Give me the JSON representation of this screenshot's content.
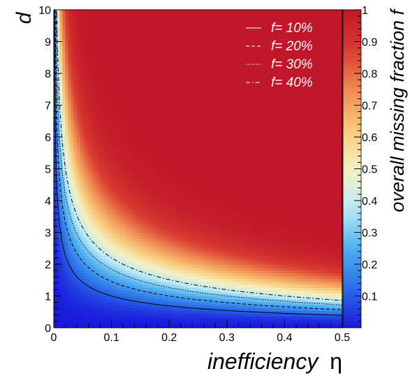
{
  "chart_data": {
    "type": "heatmap",
    "function": "f = 1 - (1 - eta)^(d^2)",
    "xlabel": "inefficiency",
    "xlabel_symbol": "η",
    "ylabel": "d",
    "colorbar_label": "overall missing fraction f",
    "xlim": [
      0,
      0.5
    ],
    "ylim": [
      0,
      10
    ],
    "zlim": [
      0,
      1
    ],
    "x_ticks": [
      "0",
      "0.1",
      "0.2",
      "0.3",
      "0.4",
      "0.5"
    ],
    "y_ticks": [
      "0",
      "1",
      "2",
      "3",
      "4",
      "5",
      "6",
      "7",
      "8",
      "9",
      "10"
    ],
    "colorbar_ticks": [
      "0.1",
      "0.2",
      "0.3",
      "0.4",
      "0.5",
      "0.6",
      "0.7",
      "0.8",
      "0.9",
      "1"
    ],
    "contours": [
      {
        "name": "f= 10%",
        "level": 0.1,
        "style": "solid"
      },
      {
        "name": "f= 20%",
        "level": 0.2,
        "style": "dashed"
      },
      {
        "name": "f= 30%",
        "level": 0.3,
        "style": "dotted"
      },
      {
        "name": "f= 40%",
        "level": 0.4,
        "style": "dashdot"
      }
    ],
    "legend_position": "top-right",
    "colormap": [
      "#1a1adc",
      "#2a6ee8",
      "#4fb0f0",
      "#bdeaf6",
      "#f5f0c0",
      "#f8c878",
      "#f08a52",
      "#d83a30",
      "#c0182a"
    ]
  }
}
